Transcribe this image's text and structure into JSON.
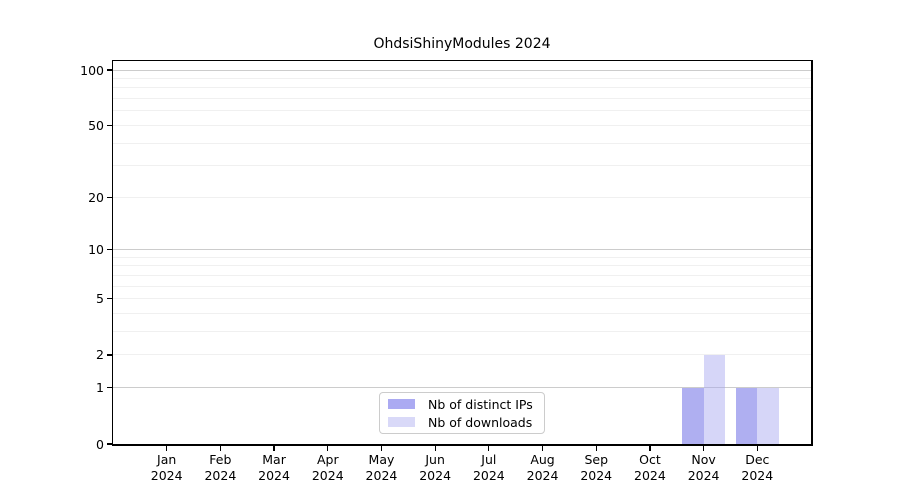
{
  "chart_data": {
    "type": "bar",
    "title": "OhdsiShinyModules 2024",
    "categories": [
      "Jan",
      "Feb",
      "Mar",
      "Apr",
      "May",
      "Jun",
      "Jul",
      "Aug",
      "Sep",
      "Oct",
      "Nov",
      "Dec"
    ],
    "category_year": "2024",
    "series": [
      {
        "name": "Nb of distinct IPs",
        "color": "rgba(110,110,230,0.55)",
        "solid_color": "#abaaf2",
        "values": [
          0,
          0,
          0,
          0,
          0,
          0,
          0,
          0,
          0,
          0,
          1,
          1
        ]
      },
      {
        "name": "Nb of downloads",
        "color": "rgba(165,165,240,0.45)",
        "solid_color": "#d9d9f8",
        "values": [
          0,
          0,
          0,
          0,
          0,
          0,
          0,
          0,
          0,
          0,
          2,
          1
        ]
      }
    ],
    "xlabel": "",
    "ylabel": "",
    "yscale": "log1p",
    "ylim": [
      0,
      112
    ],
    "y_ticks": [
      0,
      1,
      2,
      5,
      10,
      20,
      50,
      100
    ],
    "gridline_values": [
      1,
      2,
      3,
      4,
      5,
      6,
      7,
      8,
      9,
      10,
      20,
      30,
      40,
      50,
      60,
      70,
      80,
      90,
      100
    ],
    "major_gridline_values": [
      1,
      10,
      100
    ],
    "grid_color_minor": "#f0f0f0",
    "grid_color_major": "#cccccc",
    "axis_color": "#000000",
    "background_color": "#ffffff",
    "legend_position": "bottom-center",
    "grid": true
  }
}
